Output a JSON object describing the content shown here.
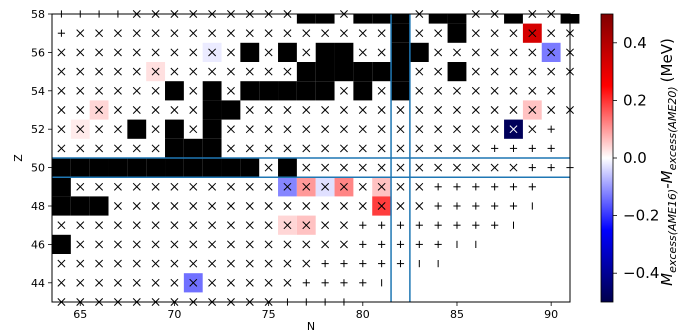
{
  "chart_data": {
    "type": "heatmap",
    "title": "",
    "xlabel": "N",
    "ylabel": "Z",
    "xlim": [
      63.5,
      91
    ],
    "ylim": [
      43,
      58
    ],
    "xticks": [
      65,
      70,
      75,
      80,
      85,
      90
    ],
    "yticks": [
      44,
      46,
      48,
      50,
      52,
      54,
      56,
      58
    ],
    "colorbar": {
      "label": "M_excess(AME16) - M_excess(AME20) (MeV)",
      "label_base": "M",
      "label_sub1": "excess(AME16)",
      "label_mid": "-M",
      "label_sub2": "excess(AME20)",
      "label_unit": "(MeV)",
      "range": [
        -0.5,
        0.5
      ],
      "ticks": [
        0.4,
        0.2,
        0.0,
        -0.2,
        -0.4
      ],
      "tick_labels": [
        "0.4",
        "0.2",
        "0.0",
        "−0.2",
        "−0.4"
      ],
      "colormap": "seismic",
      "colors": {
        "min": "#00004c",
        "mid": "#ffffff",
        "max": "#800000"
      }
    },
    "reference_lines": {
      "N": [
        81.5,
        82.5
      ],
      "Z": [
        49.5,
        50.5
      ],
      "color": "#1f77b4"
    },
    "marker_legend": {
      "x": "cross marker",
      "+": "plus marker",
      "|": "vertical bar marker"
    },
    "rows": [
      {
        "Z": 58,
        "start": 64,
        "cells": "++++xxxxxxxxxxxxxx#xx#xx#xx#xx#xxxxxxxx"
      },
      {
        "Z": 57,
        "start": 64,
        "cells": "+xxxxxxxxxxxxxxxxxxxx#xxxxxxxxxxxxxxx"
      },
      {
        "Z": 56,
        "start": 64,
        "cells": "xxxxxxxxxx#x#xxxxxx#xxxxxxxxxxxx"
      },
      {
        "Z": 55,
        "start": 64,
        "cells": "xxxxxxxxxxxxxxx###xxx#xxxxxxxxxxx"
      },
      {
        "Z": 54,
        "start": 64,
        "cells": "xxxxxx#x#xx####x#x#xxxxxxxx"
      },
      {
        "Z": 53,
        "start": 64,
        "cells": "xxxxxxxx#xxxxxxxxxxxxxxxxxxx"
      },
      {
        "Z": 52,
        "start": 64,
        "cells": "xxxx#x#xxxxxxxxxxxxxxxxxxx+"
      },
      {
        "Z": 51,
        "start": 64,
        "cells": "xxxxxx##xxxxxxxxxxxxxxx++++"
      },
      {
        "Z": 50,
        "start": 64,
        "cells": "###########x#xxxxxxxxxxxx+++"
      },
      {
        "Z": 49,
        "start": 64,
        "cells": "#xxxxxxxxxxxxxxxxxxx++++++"
      },
      {
        "Z": 48,
        "start": 64,
        "cells": "##xxxxxxxxxxxxxxxxxx+++++|"
      },
      {
        "Z": 47,
        "start": 64,
        "cells": "xxxxxxxxxxxxxxxx++++++++|"
      },
      {
        "Z": 46,
        "start": 64,
        "cells": "#xxxxxxxxxxxxxxx+++++||"
      },
      {
        "Z": 45,
        "start": 64,
        "cells": "xxxxxxxxxxxxxx+++++||"
      },
      {
        "Z": 44,
        "start": 64,
        "cells": "xxxxxxxxxxxxx++++|"
      },
      {
        "Z": 43,
        "start": 64,
        "cells": "xxxxxxxxxxxx+++|"
      }
    ],
    "black_cells": [
      [
        77,
        58
      ],
      [
        78,
        58
      ],
      [
        80,
        58
      ],
      [
        81,
        58
      ],
      [
        82,
        58
      ],
      [
        84,
        58
      ],
      [
        82,
        57
      ],
      [
        74,
        56
      ],
      [
        76,
        56
      ],
      [
        78,
        56
      ],
      [
        79,
        56
      ],
      [
        82,
        56
      ],
      [
        77,
        55
      ],
      [
        78,
        55
      ],
      [
        79,
        55
      ],
      [
        82,
        55
      ],
      [
        70,
        54
      ],
      [
        72,
        54
      ],
      [
        74,
        54
      ],
      [
        75,
        54
      ],
      [
        76,
        54
      ],
      [
        77,
        54
      ],
      [
        80,
        54
      ],
      [
        82,
        54
      ],
      [
        72,
        53
      ],
      [
        73,
        53
      ],
      [
        68,
        52
      ],
      [
        70,
        52
      ],
      [
        72,
        52
      ],
      [
        70,
        51
      ],
      [
        72,
        51
      ],
      [
        64,
        50
      ],
      [
        65,
        50
      ],
      [
        66,
        50
      ],
      [
        67,
        50
      ],
      [
        68,
        50
      ],
      [
        69,
        50
      ],
      [
        70,
        50
      ],
      [
        71,
        50
      ],
      [
        72,
        50
      ],
      [
        74,
        50
      ],
      [
        64,
        49
      ],
      [
        64,
        48
      ],
      [
        66,
        48
      ],
      [
        64,
        46
      ]
    ],
    "nonzero_cells": [
      {
        "N": 89,
        "Z": 57,
        "value": 0.33
      },
      {
        "N": 90,
        "Z": 56,
        "value": -0.13
      },
      {
        "N": 72,
        "Z": 56,
        "value": -0.02
      },
      {
        "N": 69,
        "Z": 55,
        "value": 0.03
      },
      {
        "N": 66,
        "Z": 53,
        "value": 0.04
      },
      {
        "N": 65,
        "Z": 52,
        "value": 0.02
      },
      {
        "N": 89,
        "Z": 53,
        "value": 0.06
      },
      {
        "N": 88,
        "Z": 52,
        "value": -0.48
      },
      {
        "N": 76,
        "Z": 49,
        "value": -0.12
      },
      {
        "N": 77,
        "Z": 49,
        "value": 0.1
      },
      {
        "N": 78,
        "Z": 49,
        "value": -0.03
      },
      {
        "N": 79,
        "Z": 49,
        "value": 0.12
      },
      {
        "N": 81,
        "Z": 49,
        "value": 0.06
      },
      {
        "N": 81,
        "Z": 48,
        "value": 0.19
      },
      {
        "N": 76,
        "Z": 47,
        "value": 0.04
      },
      {
        "N": 77,
        "Z": 47,
        "value": 0.06
      },
      {
        "N": 71,
        "Z": 44,
        "value": -0.14
      }
    ]
  }
}
